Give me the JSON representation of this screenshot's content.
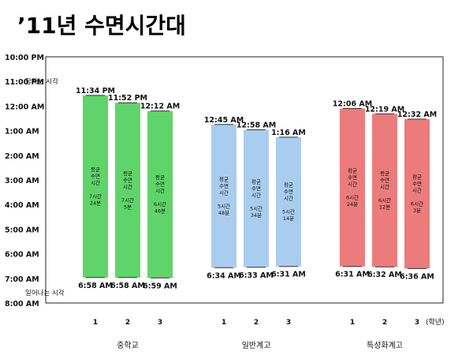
{
  "chart_data": {
    "type": "bar",
    "title": "’11년 수면시간대",
    "y_ticks": [
      "10:00 PM",
      "11:00 PM",
      "12:00 AM",
      "1:00 AM",
      "2:00 AM",
      "3:00 AM",
      "4:00 AM",
      "5:00 AM",
      "6:00 AM",
      "7:00 AM",
      "8:00 AM"
    ],
    "ylim_hours_from_10pm": [
      0,
      10
    ],
    "annotations": {
      "sleep": "잠자는 시각",
      "wake": "일어나는 시각"
    },
    "x_unit": "(학년)",
    "avg_label": [
      "평균",
      "수면",
      "시간"
    ],
    "groups": [
      {
        "name": "중학교",
        "color": "#5fd46a",
        "bars": [
          {
            "grade": "1",
            "sleep": "11:34 PM",
            "wake": "6:58 AM",
            "duration": [
              "7시간",
              "24분"
            ]
          },
          {
            "grade": "2",
            "sleep": "11:52 PM",
            "wake": "6:58 AM",
            "duration": [
              "7시간",
              "5분"
            ]
          },
          {
            "grade": "3",
            "sleep": "12:12 AM",
            "wake": "6:59 AM",
            "duration": [
              "6시간",
              "46분"
            ]
          }
        ]
      },
      {
        "name": "일반계고",
        "color": "#a9cdef",
        "bars": [
          {
            "grade": "1",
            "sleep": "12:45 AM",
            "wake": "6:34 AM",
            "duration": [
              "5시간",
              "48분"
            ]
          },
          {
            "grade": "2",
            "sleep": "12:58 AM",
            "wake": "6:33 AM",
            "duration": [
              "5시간",
              "34분"
            ]
          },
          {
            "grade": "3",
            "sleep": "1:16 AM",
            "wake": "6:31 AM",
            "duration": [
              "5시간",
              "14분"
            ]
          }
        ]
      },
      {
        "name": "특성화계고",
        "color": "#ec7b7b",
        "bars": [
          {
            "grade": "1",
            "sleep": "12:06 AM",
            "wake": "6:31 AM",
            "duration": [
              "6시간",
              "24분"
            ]
          },
          {
            "grade": "2",
            "sleep": "12:19 AM",
            "wake": "6:32 AM",
            "duration": [
              "6시간",
              "12분"
            ]
          },
          {
            "grade": "3",
            "sleep": "12:32 AM",
            "wake": "6:36 AM",
            "duration": [
              "6시간",
              "3분"
            ]
          }
        ]
      }
    ]
  }
}
